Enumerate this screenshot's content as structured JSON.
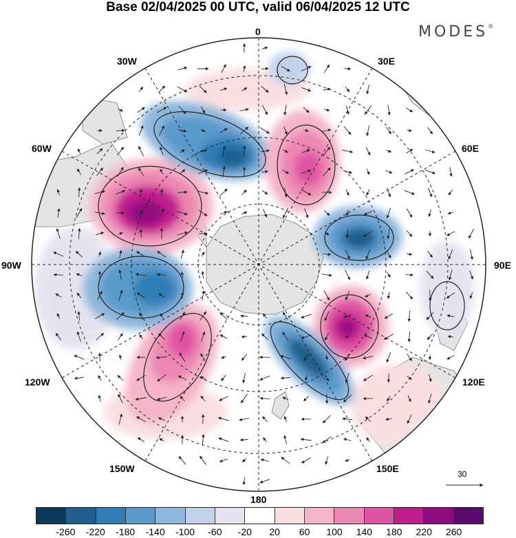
{
  "title": "Base 02/04/2025 00 UTC, valid 06/04/2025 12 UTC",
  "brand": "MODES",
  "brand_mark": "®",
  "meridian_labels": {
    "top": "0",
    "top_left": "30W",
    "top_right": "30E",
    "upper_left": "60W",
    "upper_right": "60E",
    "left": "90W",
    "right": "90E",
    "lower_left": "120W",
    "lower_right": "120E",
    "bottom_left": "150W",
    "bottom_right": "150E",
    "bottom": "180"
  },
  "reference_vector": {
    "label": "30",
    "icon": "arrow-right-icon"
  },
  "colorbar": {
    "colors": [
      "#0d3a59",
      "#1d5e8d",
      "#2f7db6",
      "#5a9acb",
      "#8eb7dc",
      "#c1d1ea",
      "#e6e3f1",
      "#ffffff",
      "#f9dfe0",
      "#f4b6c8",
      "#ec86b3",
      "#df53a2",
      "#c11c8d",
      "#8f0b7f",
      "#5b0a6e"
    ],
    "tick_labels": [
      "-260",
      "-220",
      "-180",
      "-140",
      "-100",
      "-60",
      "-20",
      "20",
      "60",
      "100",
      "140",
      "180",
      "220",
      "260"
    ]
  },
  "map": {
    "projection": "south polar stereographic",
    "anomaly_cells": [
      {
        "name": "positive-anomaly-atlantic-west",
        "color": "#df53a2",
        "core": "#8f0b7f"
      },
      {
        "name": "negative-anomaly-south-atlantic",
        "color": "#2f7db6",
        "core": "#1d5e8d"
      },
      {
        "name": "positive-anomaly-south-atlantic-east",
        "color": "#ec86b3",
        "core": "#df53a2"
      },
      {
        "name": "negative-anomaly-indian",
        "color": "#2f7db6",
        "core": "#1d5e8d"
      },
      {
        "name": "positive-anomaly-indian-east",
        "color": "#df53a2",
        "core": "#8f0b7f"
      },
      {
        "name": "negative-anomaly-tasman",
        "color": "#2f7db6",
        "core": "#1d5e8d"
      },
      {
        "name": "positive-anomaly-pacific",
        "color": "#ec86b3",
        "core": "#df53a2"
      },
      {
        "name": "negative-anomaly-amundsen",
        "color": "#2f7db6",
        "core": "#1d5e8d"
      }
    ]
  }
}
